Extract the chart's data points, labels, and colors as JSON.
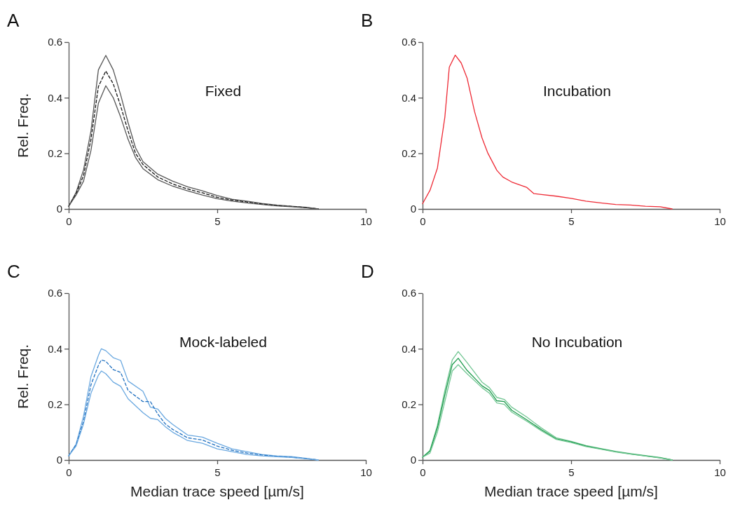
{
  "chart_data": [
    {
      "type": "line",
      "title": "A",
      "ylabel": "Rel. Freq.",
      "annotations": [
        "Fixed"
      ],
      "xlim": [
        0,
        10
      ],
      "xticks": [
        0,
        5,
        10
      ],
      "ylim": [
        0,
        0.6
      ],
      "yticks": [
        0,
        0.2,
        0.4,
        0.6
      ],
      "x": [
        0,
        0.25,
        0.5,
        0.75,
        1,
        1.25,
        1.5,
        1.75,
        2,
        2.25,
        2.5,
        3,
        3.5,
        4,
        4.5,
        5,
        5.5,
        6,
        6.5,
        7,
        7.5,
        8,
        8.4
      ],
      "series": [
        {
          "color": "#555555",
          "line_style": "solid",
          "values": [
            0.01,
            0.06,
            0.14,
            0.28,
            0.5,
            0.552,
            0.5,
            0.41,
            0.31,
            0.22,
            0.17,
            0.125,
            0.1,
            0.08,
            0.065,
            0.048,
            0.035,
            0.028,
            0.02,
            0.014,
            0.01,
            0.006,
            0
          ]
        },
        {
          "color": "#111111",
          "line_style": "dashed",
          "values": [
            0.01,
            0.055,
            0.12,
            0.25,
            0.44,
            0.496,
            0.45,
            0.37,
            0.28,
            0.2,
            0.16,
            0.115,
            0.09,
            0.072,
            0.058,
            0.042,
            0.032,
            0.025,
            0.018,
            0.012,
            0.009,
            0.005,
            0
          ]
        },
        {
          "color": "#555555",
          "line_style": "solid",
          "values": [
            0.01,
            0.05,
            0.1,
            0.21,
            0.38,
            0.443,
            0.4,
            0.33,
            0.25,
            0.185,
            0.145,
            0.105,
            0.082,
            0.065,
            0.05,
            0.037,
            0.028,
            0.022,
            0.016,
            0.011,
            0.008,
            0.004,
            0
          ]
        }
      ]
    },
    {
      "type": "line",
      "title": "B",
      "annotations": [
        "Incubation"
      ],
      "xlim": [
        0,
        10
      ],
      "xticks": [
        0,
        5,
        10
      ],
      "ylim": [
        0,
        0.6
      ],
      "yticks": [
        0,
        0.2,
        0.4,
        0.6
      ],
      "x": [
        0,
        0.25,
        0.5,
        0.75,
        0.9,
        1.1,
        1.3,
        1.5,
        1.75,
        2,
        2.2,
        2.5,
        2.7,
        3,
        3.5,
        3.75,
        4,
        4.5,
        5,
        5.5,
        6,
        6.5,
        7,
        7.5,
        8,
        8.4
      ],
      "series": [
        {
          "color": "#ee2a35",
          "line_style": "solid",
          "values": [
            0.019,
            0.067,
            0.147,
            0.33,
            0.51,
            0.553,
            0.525,
            0.47,
            0.35,
            0.256,
            0.2,
            0.139,
            0.115,
            0.097,
            0.078,
            0.055,
            0.052,
            0.046,
            0.038,
            0.028,
            0.022,
            0.016,
            0.014,
            0.01,
            0.008,
            0
          ]
        }
      ]
    },
    {
      "type": "line",
      "title": "C",
      "xlabel": "Median trace speed [µm/s]",
      "ylabel": "Rel. Freq.",
      "annotations": [
        "Mock-labeled"
      ],
      "xlim": [
        0,
        10
      ],
      "xticks": [
        0,
        5,
        10
      ],
      "ylim": [
        0,
        0.6
      ],
      "yticks": [
        0,
        0.2,
        0.4,
        0.6
      ],
      "x": [
        0,
        0.25,
        0.5,
        0.75,
        1,
        1.1,
        1.25,
        1.5,
        1.75,
        2,
        2.5,
        2.75,
        3,
        3.25,
        3.5,
        4,
        4.5,
        5,
        5.5,
        6,
        6.5,
        7,
        7.5,
        8,
        8.4
      ],
      "series": [
        {
          "color": "#6aa8e0",
          "line_style": "solid",
          "values": [
            0.015,
            0.057,
            0.158,
            0.3,
            0.376,
            0.4,
            0.393,
            0.368,
            0.358,
            0.284,
            0.247,
            0.19,
            0.183,
            0.15,
            0.128,
            0.09,
            0.082,
            0.06,
            0.04,
            0.03,
            0.02,
            0.015,
            0.012,
            0.006,
            0
          ]
        },
        {
          "color": "#1f6fbf",
          "line_style": "dashed",
          "values": [
            0.015,
            0.055,
            0.14,
            0.27,
            0.34,
            0.36,
            0.355,
            0.325,
            0.315,
            0.25,
            0.21,
            0.21,
            0.165,
            0.13,
            0.11,
            0.08,
            0.072,
            0.05,
            0.035,
            0.025,
            0.018,
            0.013,
            0.01,
            0.005,
            0
          ]
        },
        {
          "color": "#6aa8e0",
          "line_style": "solid",
          "values": [
            0.015,
            0.05,
            0.13,
            0.24,
            0.305,
            0.32,
            0.31,
            0.28,
            0.265,
            0.22,
            0.17,
            0.15,
            0.145,
            0.12,
            0.1,
            0.07,
            0.06,
            0.04,
            0.03,
            0.02,
            0.015,
            0.012,
            0.009,
            0.004,
            0
          ]
        }
      ]
    },
    {
      "type": "line",
      "title": "D",
      "xlabel": "Median trace speed [µm/s]",
      "annotations": [
        "No Incubation"
      ],
      "xlim": [
        0,
        10
      ],
      "xticks": [
        0,
        5,
        10
      ],
      "ylim": [
        0,
        0.6
      ],
      "yticks": [
        0,
        0.2,
        0.4,
        0.6
      ],
      "x": [
        0,
        0.25,
        0.5,
        0.75,
        1,
        1.2,
        1.5,
        2,
        2.25,
        2.5,
        2.75,
        3,
        3.5,
        4,
        4.5,
        5,
        5.5,
        6,
        6.5,
        7,
        7.5,
        8,
        8.4
      ],
      "series": [
        {
          "color": "#72c693",
          "line_style": "solid",
          "values": [
            0.01,
            0.035,
            0.125,
            0.25,
            0.36,
            0.39,
            0.35,
            0.28,
            0.26,
            0.225,
            0.218,
            0.19,
            0.155,
            0.115,
            0.08,
            0.067,
            0.052,
            0.041,
            0.031,
            0.023,
            0.016,
            0.009,
            0
          ]
        },
        {
          "color": "#1a9a4a",
          "line_style": "solid",
          "values": [
            0.01,
            0.032,
            0.116,
            0.234,
            0.343,
            0.366,
            0.322,
            0.267,
            0.25,
            0.213,
            0.21,
            0.179,
            0.145,
            0.109,
            0.076,
            0.065,
            0.05,
            0.04,
            0.03,
            0.022,
            0.015,
            0.008,
            0
          ]
        },
        {
          "color": "#72c693",
          "line_style": "solid",
          "values": [
            0.01,
            0.025,
            0.1,
            0.21,
            0.32,
            0.343,
            0.31,
            0.26,
            0.24,
            0.205,
            0.2,
            0.172,
            0.14,
            0.105,
            0.074,
            0.063,
            0.048,
            0.039,
            0.029,
            0.021,
            0.014,
            0.007,
            0
          ]
        }
      ]
    }
  ]
}
